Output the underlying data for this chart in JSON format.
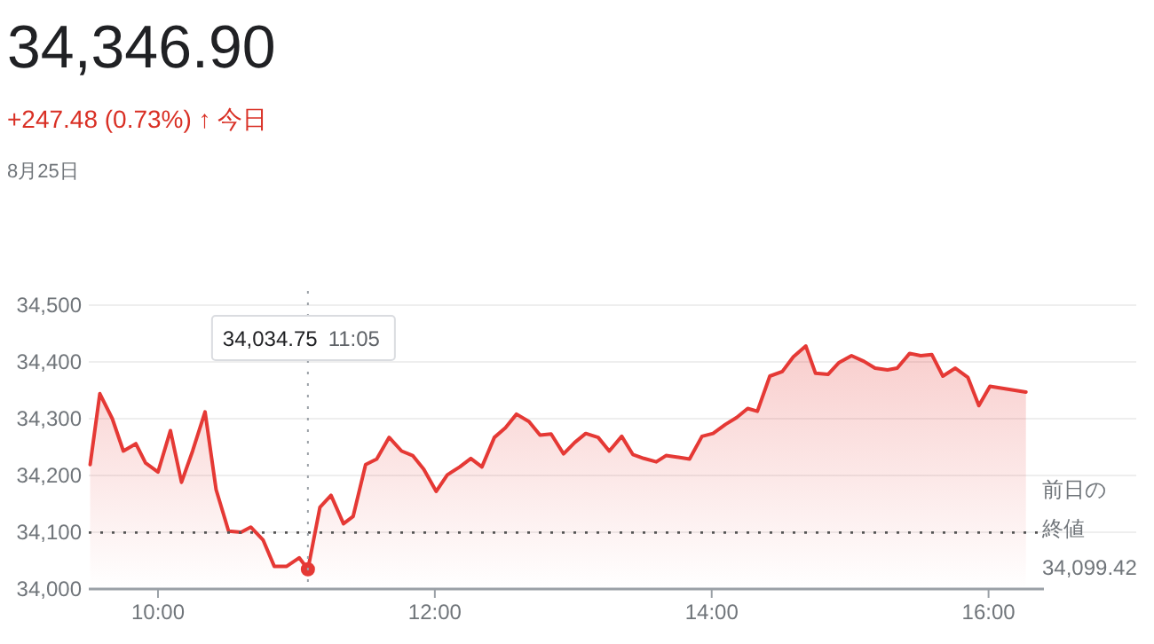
{
  "chart_data": {
    "type": "area",
    "title": "34,346.90",
    "subtitle": "+247.48 (0.73%) ↑ 今日",
    "annotations": [
      "8月25日"
    ],
    "x": [
      9.51,
      9.58,
      9.67,
      9.75,
      9.84,
      9.91,
      10.0,
      10.09,
      10.17,
      10.25,
      10.34,
      10.42,
      10.51,
      10.6,
      10.67,
      10.76,
      10.84,
      10.93,
      11.02,
      11.083,
      11.17,
      11.25,
      11.34,
      11.41,
      11.5,
      11.58,
      11.67,
      11.76,
      11.84,
      11.92,
      12.01,
      12.09,
      12.18,
      12.26,
      12.34,
      12.43,
      12.51,
      12.59,
      12.68,
      12.76,
      12.84,
      12.93,
      13.01,
      13.09,
      13.18,
      13.26,
      13.35,
      13.43,
      13.51,
      13.6,
      13.67,
      13.76,
      13.84,
      13.93,
      14.01,
      14.1,
      14.18,
      14.26,
      14.33,
      14.42,
      14.51,
      14.59,
      14.68,
      14.75,
      14.84,
      14.92,
      15.01,
      15.1,
      15.18,
      15.27,
      15.34,
      15.43,
      15.51,
      15.59,
      15.67,
      15.76,
      15.85,
      15.93,
      16.01,
      16.27
    ],
    "series": [
      {
        "color": "#e53935",
        "values": [
          34219,
          34344,
          34300,
          34243,
          34256,
          34222,
          34206,
          34279,
          34188,
          34243,
          34312,
          34175,
          34102,
          34100,
          34109,
          34086,
          34040,
          34040,
          34055,
          34034.75,
          34144,
          34165,
          34115,
          34128,
          34219,
          34229,
          34267,
          34243,
          34235,
          34211,
          34172,
          34201,
          34215,
          34230,
          34215,
          34267,
          34284,
          34308,
          34295,
          34271,
          34273,
          34238,
          34258,
          34274,
          34267,
          34243,
          34269,
          34237,
          34230,
          34224,
          34235,
          34232,
          34229,
          34269,
          34274,
          34290,
          34302,
          34318,
          34313,
          34375,
          34383,
          34409,
          34428,
          34380,
          34378,
          34399,
          34411,
          34401,
          34389,
          34386,
          34389,
          34415,
          34411,
          34413,
          34375,
          34389,
          34373,
          34323,
          34357,
          34346.9
        ]
      },
      {
        "type": "scatter",
        "color": "#e53935",
        "x": [
          11.083
        ],
        "values": [
          34034.75
        ]
      }
    ],
    "xlim": [
      9.5,
      16.4
    ],
    "xticks": [
      {
        "value": 10,
        "label": "10:00"
      },
      {
        "value": 12,
        "label": "12:00"
      },
      {
        "value": 14,
        "label": "14:00"
      },
      {
        "value": 16,
        "label": "16:00"
      }
    ],
    "ylim": [
      34000,
      34500
    ],
    "yticks": [
      {
        "value": 34000,
        "label": "34,000"
      },
      {
        "value": 34100,
        "label": "34,100"
      },
      {
        "value": 34200,
        "label": "34,200"
      },
      {
        "value": 34300,
        "label": "34,300"
      },
      {
        "value": 34400,
        "label": "34,400"
      },
      {
        "value": 34500,
        "label": "34,500"
      }
    ],
    "grid": "y",
    "ref_lines": [
      {
        "axis": "y",
        "value": 34099.42,
        "label": "前日の終値34,099.42",
        "color": "#555555",
        "line_style": "dotted"
      },
      {
        "axis": "x",
        "value": 11.083,
        "label": "34,034.75  11:05",
        "color": "#9aa0a6",
        "line_style": "dotted"
      }
    ]
  }
}
